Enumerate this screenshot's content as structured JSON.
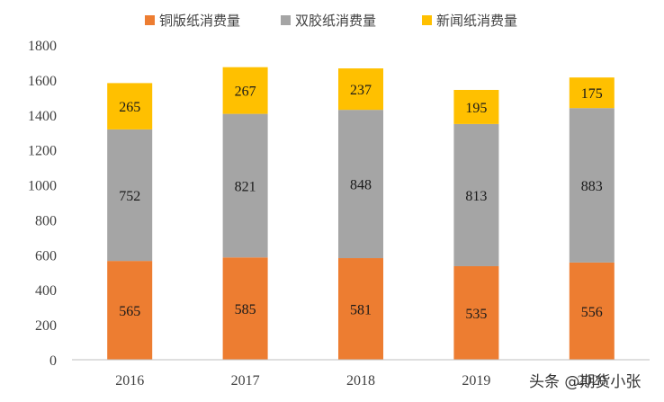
{
  "chart_data": {
    "type": "bar",
    "stacked": true,
    "categories": [
      "2016",
      "2017",
      "2018",
      "2019",
      "2020"
    ],
    "series": [
      {
        "name": "铜版纸消费量",
        "color": "#ED7D31",
        "values": [
          565,
          585,
          581,
          535,
          556
        ]
      },
      {
        "name": "双胶纸消费量",
        "color": "#A5A5A5",
        "values": [
          752,
          821,
          848,
          813,
          883
        ]
      },
      {
        "name": "新闻纸消费量",
        "color": "#FFC000",
        "values": [
          265,
          267,
          237,
          195,
          175
        ]
      }
    ],
    "ylim": [
      0,
      1800
    ],
    "yticks": [
      "0",
      "200",
      "400",
      "600",
      "800",
      "1000",
      "1200",
      "1400",
      "1600",
      "1800"
    ],
    "grid": false,
    "legend_position": "top"
  },
  "watermark": "头条 @期货小张"
}
